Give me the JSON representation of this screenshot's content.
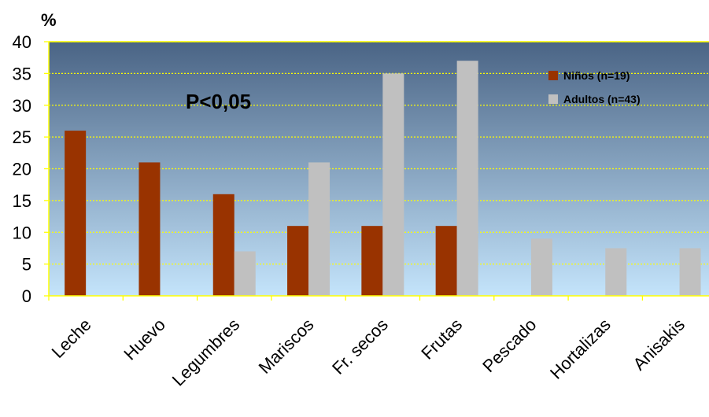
{
  "chart_data": {
    "type": "bar",
    "ylabel": "%",
    "ylim": [
      0,
      40
    ],
    "yticks": [
      0,
      5,
      10,
      15,
      20,
      25,
      30,
      35,
      40
    ],
    "grid": true,
    "legend_position": "top-right",
    "categories": [
      "Leche",
      "Huevo",
      "Legumbres",
      "Mariscos",
      "Fr. secos",
      "Frutas",
      "Pescado",
      "Hortalizas",
      "Anisakis"
    ],
    "series": [
      {
        "name": "Niños (n=19)",
        "color": "#993300",
        "values": [
          26,
          21,
          16,
          11,
          11,
          11,
          0,
          0,
          0
        ]
      },
      {
        "name": "Adultos (n=43)",
        "color": "#c0c0c0",
        "values": [
          0,
          0,
          7,
          21,
          35,
          37,
          9,
          7.5,
          7.5
        ]
      }
    ],
    "annotations": [
      "P<0,05"
    ],
    "colors": {
      "plot_bg_top": "#4a6485",
      "plot_bg_bottom": "#c4e4fb",
      "grid_line": "#ffff00",
      "plot_border": "#ffff00"
    }
  }
}
